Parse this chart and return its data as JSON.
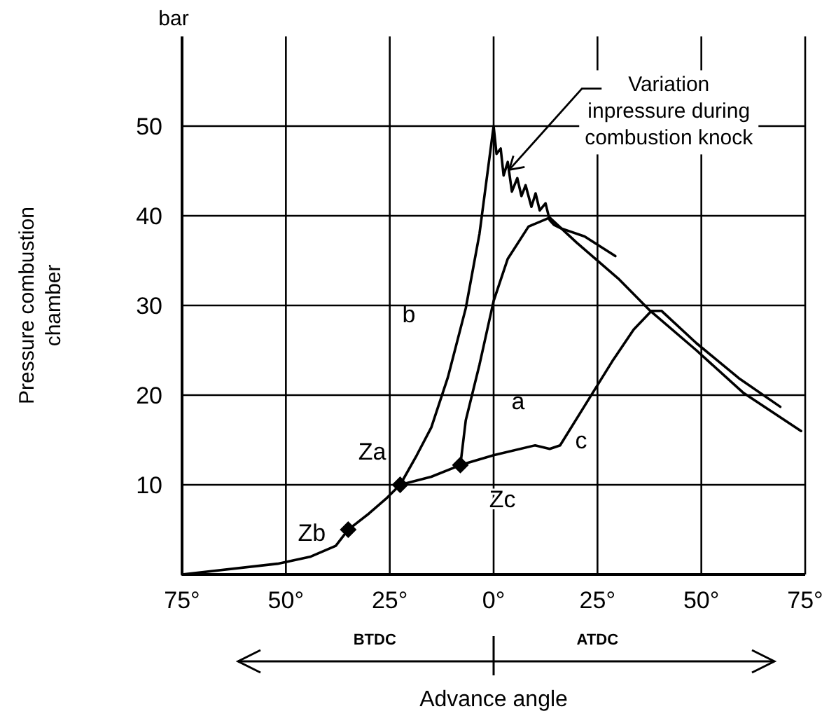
{
  "chart_data": {
    "type": "line",
    "legend": false,
    "xlabel": "Advance angle",
    "ylabel": "Pressure combustion chamber",
    "xlim": [
      -75,
      75
    ],
    "ylim": [
      0,
      60
    ],
    "xticks": [
      {
        "value": -75,
        "label": "75°"
      },
      {
        "value": -50,
        "label": "50°"
      },
      {
        "value": -25,
        "label": "25°"
      },
      {
        "value": 0,
        "label": "0°"
      },
      {
        "value": 25,
        "label": "25°"
      },
      {
        "value": 50,
        "label": "50°"
      },
      {
        "value": 75,
        "label": "75°"
      }
    ],
    "yticks": [
      10,
      20,
      30,
      40,
      50
    ],
    "grid": true,
    "marker": "none",
    "line_style": "solid",
    "series": [
      {
        "name": "b",
        "color": "#000000",
        "x": [
          -75,
          -52,
          -44,
          -38,
          -35,
          -30,
          -26,
          -22.5,
          -18.5,
          -15,
          -11,
          -6.7,
          -3.4,
          -1.7,
          0,
          0.7,
          1.7,
          2.4,
          3.4,
          4.4,
          5.7,
          6.7,
          7.7,
          9.1,
          10.1,
          11.1,
          12.5,
          13.5,
          14.5,
          16.2,
          21.9,
          29.3
        ],
        "values": [
          0,
          1.2,
          2,
          3.2,
          5,
          6.8,
          8.4,
          10,
          13.3,
          16.4,
          22,
          29.7,
          38,
          44,
          50,
          46.9,
          47.5,
          44.5,
          46,
          42.7,
          44.2,
          42.2,
          43.4,
          41,
          42.5,
          40.6,
          41.4,
          39.5,
          39,
          38.6,
          37.7,
          35.5
        ]
      },
      {
        "name": "a",
        "color": "#000000",
        "x": [
          -22.5,
          -15,
          -8,
          -6.7,
          -3.4,
          0,
          3.4,
          8.4,
          13.5,
          20,
          30,
          37.7,
          48.8,
          60,
          74
        ],
        "values": [
          10,
          10.9,
          12.2,
          17.2,
          23.4,
          30.5,
          35.2,
          38.8,
          39.8,
          37,
          33,
          29.4,
          25,
          20.3,
          16
        ]
      },
      {
        "name": "c",
        "color": "#000000",
        "x": [
          -8,
          0,
          10,
          13.5,
          16,
          21.9,
          28.6,
          33.7,
          38,
          40.4,
          48.8,
          59,
          69
        ],
        "values": [
          12.2,
          13.3,
          14.4,
          14,
          14.4,
          18.8,
          23.8,
          27.3,
          29.4,
          29.4,
          25.8,
          21.9,
          18.7
        ]
      },
      {
        "type": "scatter",
        "marker": "diamond",
        "color": "#000000",
        "x": [
          -35,
          -22.5,
          -8
        ],
        "values": [
          5,
          10,
          12.2
        ]
      }
    ],
    "annotations": [
      "bar",
      "BTDC",
      "ATDC",
      {
        "text": "Za",
        "x": -22.5,
        "y": 10
      },
      {
        "text": "Zb",
        "x": -35,
        "y": 5
      },
      {
        "text": "Zc",
        "x": -8,
        "y": 12.2
      },
      {
        "text": "Variation\ninpressure during\ncombustion knock",
        "x": 2.4,
        "y": 44.5
      }
    ]
  }
}
